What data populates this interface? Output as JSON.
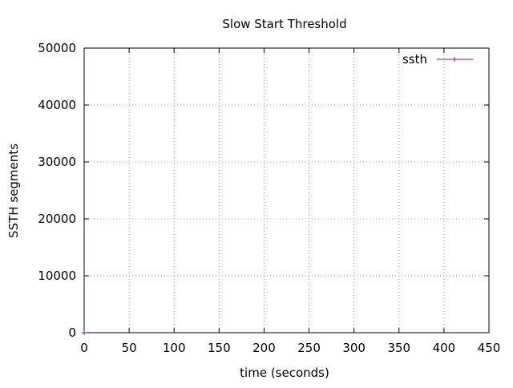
{
  "chart_data": {
    "type": "line",
    "title": "Slow Start Threshold",
    "xlabel": "time (seconds)",
    "ylabel": "SSTH segments",
    "xlim": [
      0,
      450
    ],
    "ylim": [
      0,
      50000
    ],
    "xticks": [
      0,
      50,
      100,
      150,
      200,
      250,
      300,
      350,
      400,
      450
    ],
    "yticks": [
      0,
      10000,
      20000,
      30000,
      40000,
      50000
    ],
    "grid": true,
    "legend": "top-right",
    "series": [
      {
        "name": "ssth",
        "color": "#9400d3",
        "marker": "plus",
        "x": [
          0
        ],
        "y": [
          0
        ]
      }
    ]
  }
}
